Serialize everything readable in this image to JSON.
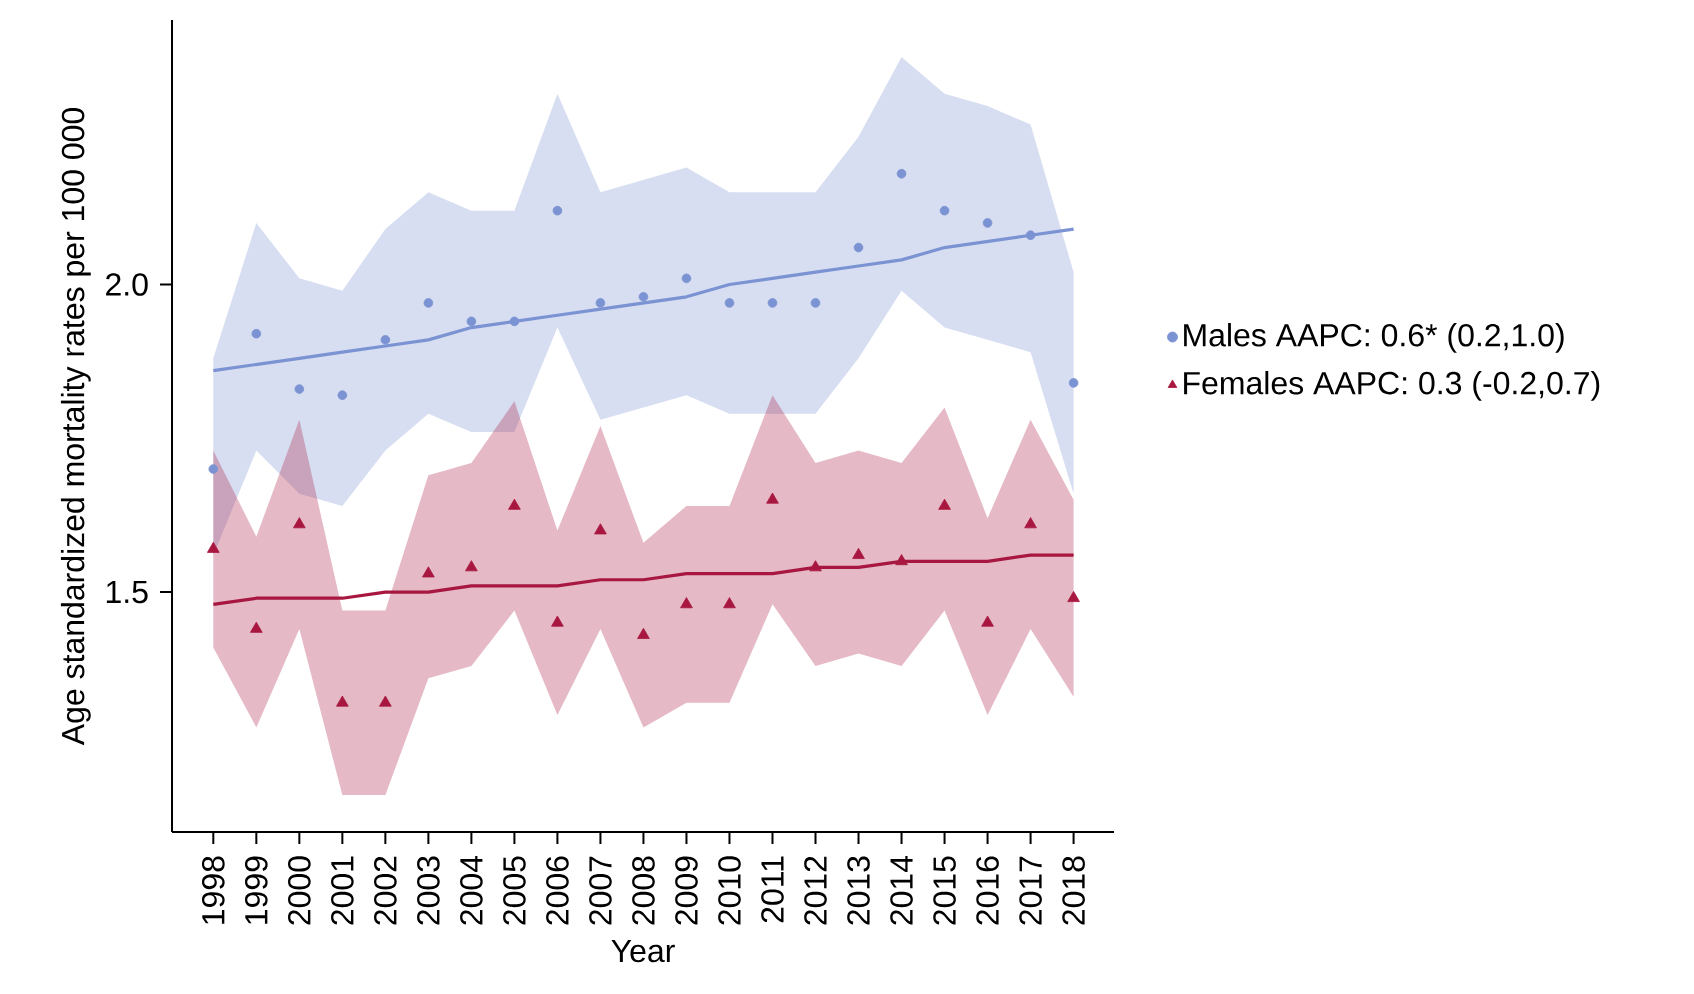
{
  "chart_data": {
    "type": "scatter",
    "xlabel": "Year",
    "ylabel": "Age standardized mortality rates per 100 000",
    "x": [
      1998,
      1999,
      2000,
      2001,
      2002,
      2003,
      2004,
      2005,
      2006,
      2007,
      2008,
      2009,
      2010,
      2011,
      2012,
      2013,
      2014,
      2015,
      2016,
      2017,
      2018
    ],
    "xlim": [
      1997.04,
      2018.94
    ],
    "ylim": [
      1.11,
      2.43
    ],
    "xticks": [
      1998,
      1999,
      2000,
      2001,
      2002,
      2003,
      2004,
      2005,
      2006,
      2007,
      2008,
      2009,
      2010,
      2011,
      2012,
      2013,
      2014,
      2015,
      2016,
      2017,
      2018
    ],
    "yticks": [
      1.5,
      {
        "value": 2.0,
        "label": "2.0"
      }
    ],
    "legend": "right",
    "series": [
      {
        "type": "line",
        "color": "#7b93d2",
        "values": [
          1.86,
          1.87,
          1.88,
          1.89,
          1.9,
          1.91,
          1.93,
          1.94,
          1.95,
          1.96,
          1.97,
          1.98,
          2.0,
          2.01,
          2.02,
          2.03,
          2.04,
          2.06,
          2.07,
          2.08,
          2.09
        ],
        "lower": [
          1.56,
          1.73,
          1.66,
          1.64,
          1.73,
          1.79,
          1.76,
          1.76,
          1.93,
          1.78,
          1.8,
          1.82,
          1.79,
          1.79,
          1.79,
          1.88,
          1.99,
          1.93,
          1.91,
          1.89,
          1.66
        ],
        "upper": [
          1.88,
          2.1,
          2.01,
          1.99,
          2.09,
          2.15,
          2.12,
          2.12,
          2.31,
          2.15,
          2.17,
          2.19,
          2.15,
          2.15,
          2.15,
          2.24,
          2.37,
          2.31,
          2.29,
          2.26,
          2.02
        ]
      },
      {
        "type": "line",
        "color": "#a8173f",
        "values": [
          1.48,
          1.49,
          1.49,
          1.49,
          1.5,
          1.5,
          1.51,
          1.51,
          1.51,
          1.52,
          1.52,
          1.53,
          1.53,
          1.53,
          1.54,
          1.54,
          1.55,
          1.55,
          1.55,
          1.56,
          1.56
        ],
        "lower": [
          1.41,
          1.28,
          1.44,
          1.17,
          1.17,
          1.36,
          1.38,
          1.47,
          1.3,
          1.44,
          1.28,
          1.32,
          1.32,
          1.48,
          1.38,
          1.4,
          1.38,
          1.47,
          1.3,
          1.44,
          1.33
        ],
        "upper": [
          1.73,
          1.59,
          1.78,
          1.47,
          1.47,
          1.69,
          1.71,
          1.81,
          1.6,
          1.77,
          1.58,
          1.64,
          1.64,
          1.82,
          1.71,
          1.73,
          1.71,
          1.8,
          1.62,
          1.78,
          1.65
        ]
      },
      {
        "name": "Males AAPC: 0.6* (0.2,1.0)",
        "marker": "circle",
        "color": "#7b93d2",
        "values": [
          1.7,
          1.92,
          1.83,
          1.82,
          1.91,
          1.97,
          1.94,
          1.94,
          2.12,
          1.97,
          1.98,
          2.01,
          1.97,
          1.97,
          1.97,
          2.06,
          2.18,
          2.12,
          2.1,
          2.08,
          1.84
        ]
      },
      {
        "name": "Females AAPC: 0.3 (-0.2,0.7)",
        "marker": "triangle",
        "color": "#a8173f",
        "values": [
          1.57,
          1.44,
          1.61,
          1.32,
          1.32,
          1.53,
          1.54,
          1.64,
          1.45,
          1.6,
          1.43,
          1.48,
          1.48,
          1.65,
          1.54,
          1.56,
          1.55,
          1.64,
          1.45,
          1.61,
          1.49
        ]
      }
    ]
  }
}
